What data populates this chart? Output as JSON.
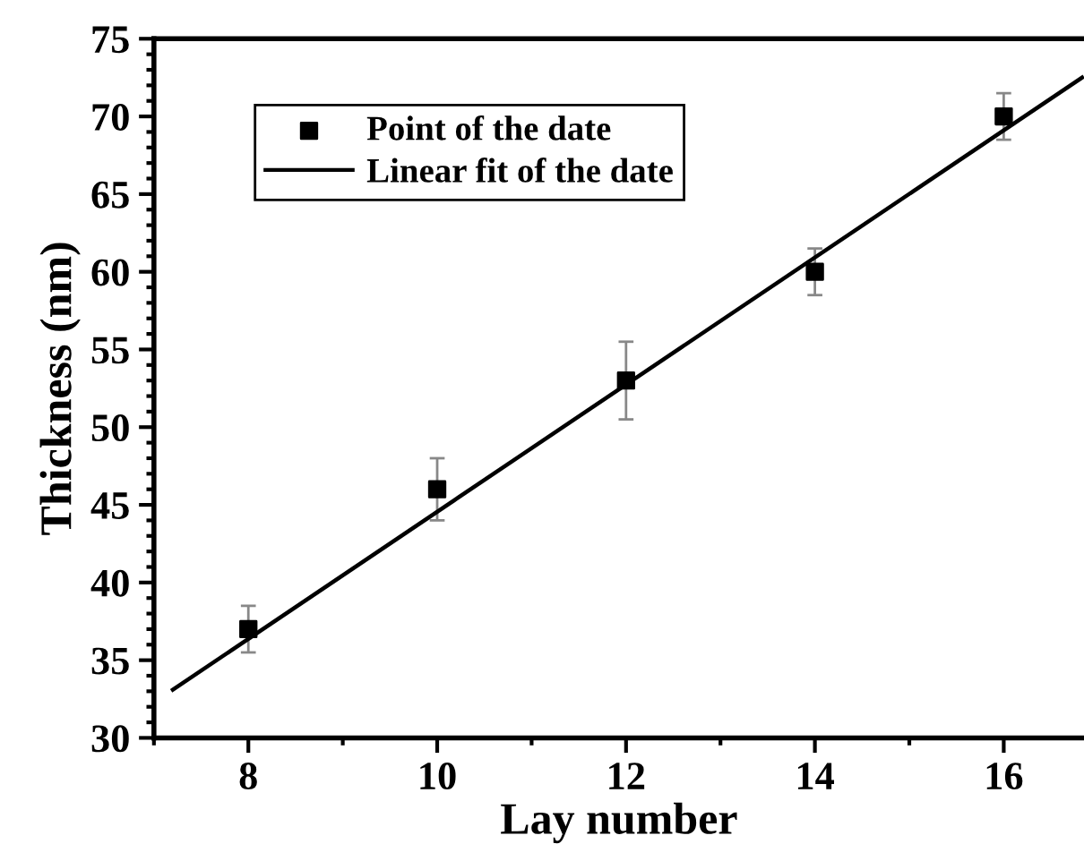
{
  "chart_data": {
    "type": "scatter",
    "xlabel": "Lay number",
    "ylabel": "Thickness (nm)",
    "xlim": [
      7,
      16.85
    ],
    "xticks": [
      8,
      10,
      12,
      14,
      16
    ],
    "ylim": [
      30,
      75
    ],
    "yticks": [
      30,
      35,
      40,
      45,
      50,
      55,
      60,
      65,
      70,
      75
    ],
    "grid": false,
    "legend": "top left",
    "series": [
      {
        "name": "Point of the date",
        "marker": "square",
        "color": "#000000",
        "x": [
          8,
          10,
          12,
          14,
          16
        ],
        "values": [
          37,
          46,
          53,
          60,
          70
        ],
        "errors": [
          1.5,
          2,
          2.5,
          1.5,
          1.5
        ]
      },
      {
        "name": "Linear fit of the date",
        "type": "line",
        "marker": "none",
        "line_style": "solid",
        "color": "#000000",
        "x": [
          7.2,
          16.83
        ],
        "values": [
          33.1,
          72.5
        ]
      }
    ]
  }
}
